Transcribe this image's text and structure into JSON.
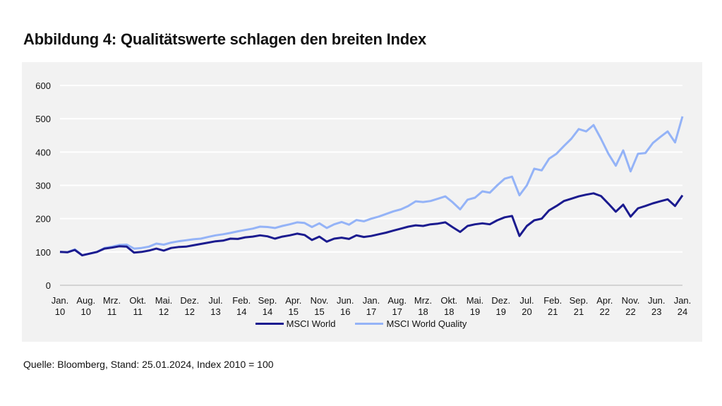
{
  "title": "Abbildung 4: Qualitätswerte schlagen den breiten Index",
  "source": "Quelle: Bloomberg, Stand: 25.01.2024, Index 2010 = 100",
  "chart_data": {
    "type": "line",
    "title": "Abbildung 4: Qualitätswerte schlagen den breiten Index",
    "xlabel": "",
    "ylabel": "",
    "ylim": [
      0,
      600
    ],
    "yticks": [
      0,
      100,
      200,
      300,
      400,
      500,
      600
    ],
    "grid": true,
    "legend_position": "bottom",
    "x_unit": "months since Jan 2010",
    "xlim": [
      0,
      168
    ],
    "x_ticks": [
      0,
      7,
      14,
      21,
      28,
      35,
      42,
      49,
      56,
      63,
      70,
      77,
      84,
      91,
      98,
      105,
      112,
      119,
      126,
      133,
      140,
      147,
      154,
      161,
      168
    ],
    "x_tick_labels": [
      [
        "Jan.",
        "10"
      ],
      [
        "Aug.",
        "10"
      ],
      [
        "Mrz.",
        "11"
      ],
      [
        "Okt.",
        "11"
      ],
      [
        "Mai.",
        "12"
      ],
      [
        "Dez.",
        "12"
      ],
      [
        "Jul.",
        "13"
      ],
      [
        "Feb.",
        "14"
      ],
      [
        "Sep.",
        "14"
      ],
      [
        "Apr.",
        "15"
      ],
      [
        "Nov.",
        "15"
      ],
      [
        "Jun.",
        "16"
      ],
      [
        "Jan.",
        "17"
      ],
      [
        "Aug.",
        "17"
      ],
      [
        "Mrz.",
        "18"
      ],
      [
        "Okt.",
        "18"
      ],
      [
        "Mai.",
        "19"
      ],
      [
        "Dez.",
        "19"
      ],
      [
        "Jul.",
        "20"
      ],
      [
        "Feb.",
        "21"
      ],
      [
        "Sep.",
        "21"
      ],
      [
        "Apr.",
        "22"
      ],
      [
        "Nov.",
        "22"
      ],
      [
        "Jun.",
        "23"
      ],
      [
        "Jan.",
        "24"
      ]
    ],
    "x": [
      0,
      2,
      4,
      6,
      8,
      10,
      12,
      14,
      16,
      18,
      20,
      22,
      24,
      26,
      28,
      30,
      32,
      34,
      36,
      38,
      40,
      42,
      44,
      46,
      48,
      50,
      52,
      54,
      56,
      58,
      60,
      62,
      64,
      66,
      68,
      70,
      72,
      74,
      76,
      78,
      80,
      82,
      84,
      86,
      88,
      90,
      92,
      94,
      96,
      98,
      100,
      102,
      104,
      106,
      108,
      110,
      112,
      114,
      116,
      118,
      120,
      122,
      124,
      126,
      128,
      130,
      132,
      134,
      136,
      138,
      140,
      142,
      144,
      146,
      148,
      150,
      152,
      154,
      156,
      158,
      160,
      162,
      164,
      166,
      168
    ],
    "series": [
      {
        "name": "MSCI World",
        "color": "#1b1b8f",
        "values": [
          100,
          99,
          106,
          90,
          95,
          100,
          110,
          113,
          117,
          116,
          98,
          100,
          104,
          110,
          104,
          112,
          115,
          116,
          120,
          124,
          128,
          132,
          134,
          140,
          139,
          144,
          146,
          150,
          147,
          140,
          146,
          150,
          155,
          151,
          136,
          146,
          131,
          140,
          143,
          139,
          150,
          145,
          148,
          153,
          158,
          164,
          170,
          176,
          180,
          178,
          183,
          185,
          189,
          174,
          160,
          178,
          183,
          186,
          183,
          195,
          204,
          208,
          148,
          178,
          195,
          200,
          225,
          238,
          253,
          260,
          267,
          272,
          276,
          268,
          245,
          221,
          242,
          206,
          231,
          238,
          246,
          252,
          258,
          238,
          270
        ]
      },
      {
        "name": "MSCI World Quality",
        "color": "#94b3f7",
        "values": [
          100,
          99,
          108,
          90,
          95,
          100,
          112,
          116,
          121,
          122,
          110,
          112,
          116,
          125,
          122,
          128,
          132,
          135,
          138,
          140,
          145,
          150,
          153,
          157,
          162,
          166,
          170,
          176,
          175,
          172,
          178,
          183,
          189,
          187,
          175,
          186,
          172,
          183,
          190,
          182,
          196,
          192,
          200,
          206,
          214,
          222,
          228,
          238,
          252,
          250,
          253,
          260,
          267,
          249,
          228,
          257,
          263,
          282,
          278,
          300,
          320,
          326,
          270,
          300,
          350,
          345,
          380,
          395,
          418,
          440,
          469,
          462,
          481,
          440,
          395,
          359,
          405,
          342,
          395,
          397,
          427,
          445,
          462,
          429,
          507
        ]
      }
    ]
  }
}
